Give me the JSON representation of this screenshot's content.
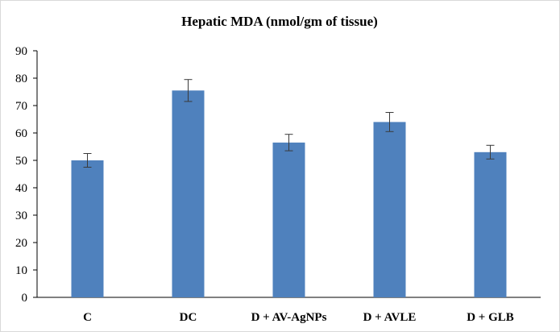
{
  "chart_data": {
    "type": "bar",
    "title": "Hepatic MDA (nmol/gm of tissue)",
    "categories": [
      "C",
      "DC",
      "D + AV-AgNPs",
      "D + AVLE",
      "D + GLB"
    ],
    "values": [
      50,
      75.5,
      56.5,
      64,
      53
    ],
    "errors": [
      2.5,
      4,
      3,
      3.5,
      2.5
    ],
    "ylim": [
      0,
      90
    ],
    "yticks": [
      "0",
      "10",
      "20",
      "30",
      "40",
      "50",
      "60",
      "70",
      "80",
      "90"
    ],
    "xlabel": "",
    "ylabel": "",
    "grid": false,
    "bar_color": "#4f81bd"
  }
}
